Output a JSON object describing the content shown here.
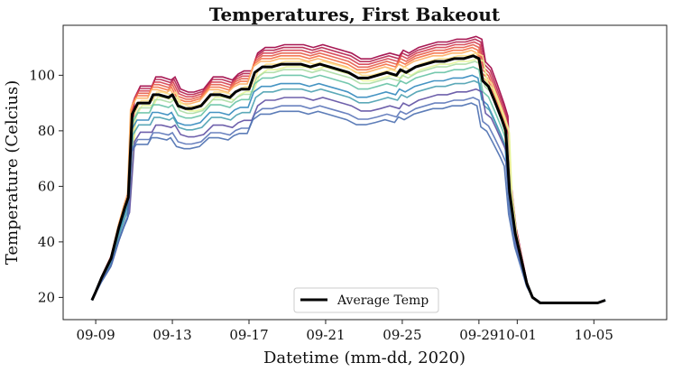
{
  "chart_data": {
    "type": "line",
    "title": "Temperatures, First Bakeout",
    "xlabel": "Datetime (mm-dd, 2020)",
    "ylabel": "Temperature (Celcius)",
    "x_ticks": [
      "09-09",
      "09-13",
      "09-17",
      "09-21",
      "09-25",
      "09-29",
      "10-01",
      "10-05"
    ],
    "x_tick_days": [
      9,
      13,
      17,
      21,
      25,
      29,
      31,
      35
    ],
    "xlim": [
      7.3,
      38.8
    ],
    "y_ticks": [
      20,
      40,
      60,
      80,
      100
    ],
    "ylim": [
      12,
      118
    ],
    "grid": false,
    "legend": {
      "position": "bottom-center",
      "entries": [
        "Average Temp"
      ]
    },
    "average_series": {
      "name": "Average Temp",
      "color": "#000000",
      "x": [
        8.8,
        9.0,
        9.3,
        9.8,
        10.2,
        10.5,
        10.7,
        10.9,
        11.2,
        11.8,
        12.0,
        12.3,
        12.8,
        13.0,
        13.3,
        13.7,
        14.0,
        14.5,
        15.0,
        15.5,
        16.0,
        16.3,
        16.6,
        17.0,
        17.3,
        17.7,
        18.2,
        18.7,
        19.2,
        19.7,
        20.2,
        20.7,
        21.2,
        21.7,
        22.2,
        22.7,
        23.2,
        23.7,
        24.2,
        24.7,
        24.9,
        25.2,
        25.7,
        26.2,
        26.7,
        27.2,
        27.7,
        28.2,
        28.7,
        29.0,
        29.2,
        29.5,
        29.8,
        30.2,
        30.4,
        30.6,
        30.9,
        31.2,
        31.5,
        31.8,
        32.2,
        32.7,
        33.2,
        33.7,
        34.2,
        34.7,
        35.2,
        35.6
      ],
      "y": [
        19,
        22,
        27,
        34,
        45,
        52,
        56,
        86,
        90,
        90,
        93,
        93,
        92,
        93,
        89,
        88,
        88,
        89,
        93,
        93,
        92,
        94,
        95,
        95,
        101,
        103,
        103,
        104,
        104,
        104,
        103,
        104,
        103,
        102,
        101,
        99,
        99,
        100,
        101,
        100,
        102,
        101,
        103,
        104,
        105,
        105,
        106,
        106,
        107,
        106,
        98,
        96,
        91,
        84,
        80,
        58,
        43,
        34,
        25,
        20,
        18,
        18,
        18,
        18,
        18,
        18,
        18,
        19
      ]
    },
    "sensor_series": [
      {
        "color": "#9e0142",
        "offset": 7,
        "x_shift": 0.15
      },
      {
        "color": "#b5214e",
        "offset": 6,
        "x_shift": 0.1
      },
      {
        "color": "#d53e4f",
        "offset": 5,
        "x_shift": 0.05
      },
      {
        "color": "#e55c49",
        "offset": 4,
        "x_shift": 0.0
      },
      {
        "color": "#f46d43",
        "offset": 3,
        "x_shift": -0.05
      },
      {
        "color": "#fdae61",
        "offset": 2,
        "x_shift": -0.1
      },
      {
        "color": "#fee08b",
        "offset": 1,
        "x_shift": 0.2
      },
      {
        "color": "#e6f598",
        "offset": -1,
        "x_shift": 0.25
      },
      {
        "color": "#abdda4",
        "offset": -2,
        "x_shift": 0.1
      },
      {
        "color": "#66c2a5",
        "offset": -4,
        "x_shift": 0.0
      },
      {
        "color": "#3288bd",
        "offset": -7,
        "x_shift": -0.05
      },
      {
        "color": "#4aa0b0",
        "offset": -9,
        "x_shift": 0.05
      },
      {
        "color": "#5e4fa2",
        "offset": -12,
        "x_shift": 0.15
      },
      {
        "color": "#5a74b8",
        "offset": -15,
        "x_shift": 0.0
      },
      {
        "color": "#4b6fb0",
        "offset": -17,
        "x_shift": -0.1
      }
    ]
  }
}
